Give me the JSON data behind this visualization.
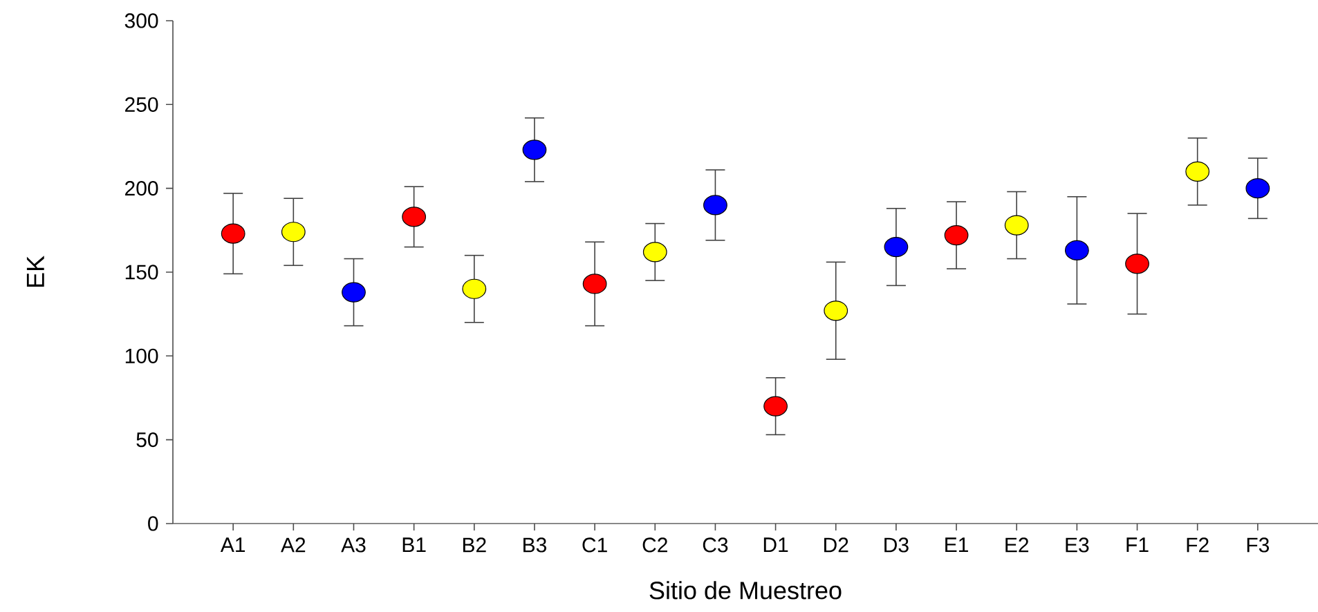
{
  "chart_data": {
    "type": "scatter",
    "xlabel": "Sitio de Muestreo",
    "ylabel": "EK",
    "categories": [
      "A1",
      "A2",
      "A3",
      "B1",
      "B2",
      "B3",
      "C1",
      "C2",
      "C3",
      "D1",
      "D2",
      "D3",
      "E1",
      "E2",
      "E3",
      "F1",
      "F2",
      "F3"
    ],
    "values": [
      173,
      174,
      138,
      183,
      140,
      223,
      143,
      162,
      190,
      70,
      127,
      165,
      172,
      178,
      163,
      155,
      210,
      200
    ],
    "errors": [
      24,
      20,
      20,
      18,
      20,
      19,
      25,
      17,
      21,
      17,
      29,
      23,
      20,
      20,
      32,
      30,
      20,
      18
    ],
    "colors": [
      "#ff0000",
      "#ffff00",
      "#0000ff",
      "#ff0000",
      "#ffff00",
      "#0000ff",
      "#ff0000",
      "#ffff00",
      "#0000ff",
      "#ff0000",
      "#ffff00",
      "#0000ff",
      "#ff0000",
      "#ffff00",
      "#0000ff",
      "#ff0000",
      "#ffff00",
      "#0000ff"
    ],
    "ylim": [
      0,
      300
    ],
    "yticks": [
      0,
      50,
      100,
      150,
      200,
      250,
      300
    ],
    "marker": "circle",
    "grid": false
  }
}
